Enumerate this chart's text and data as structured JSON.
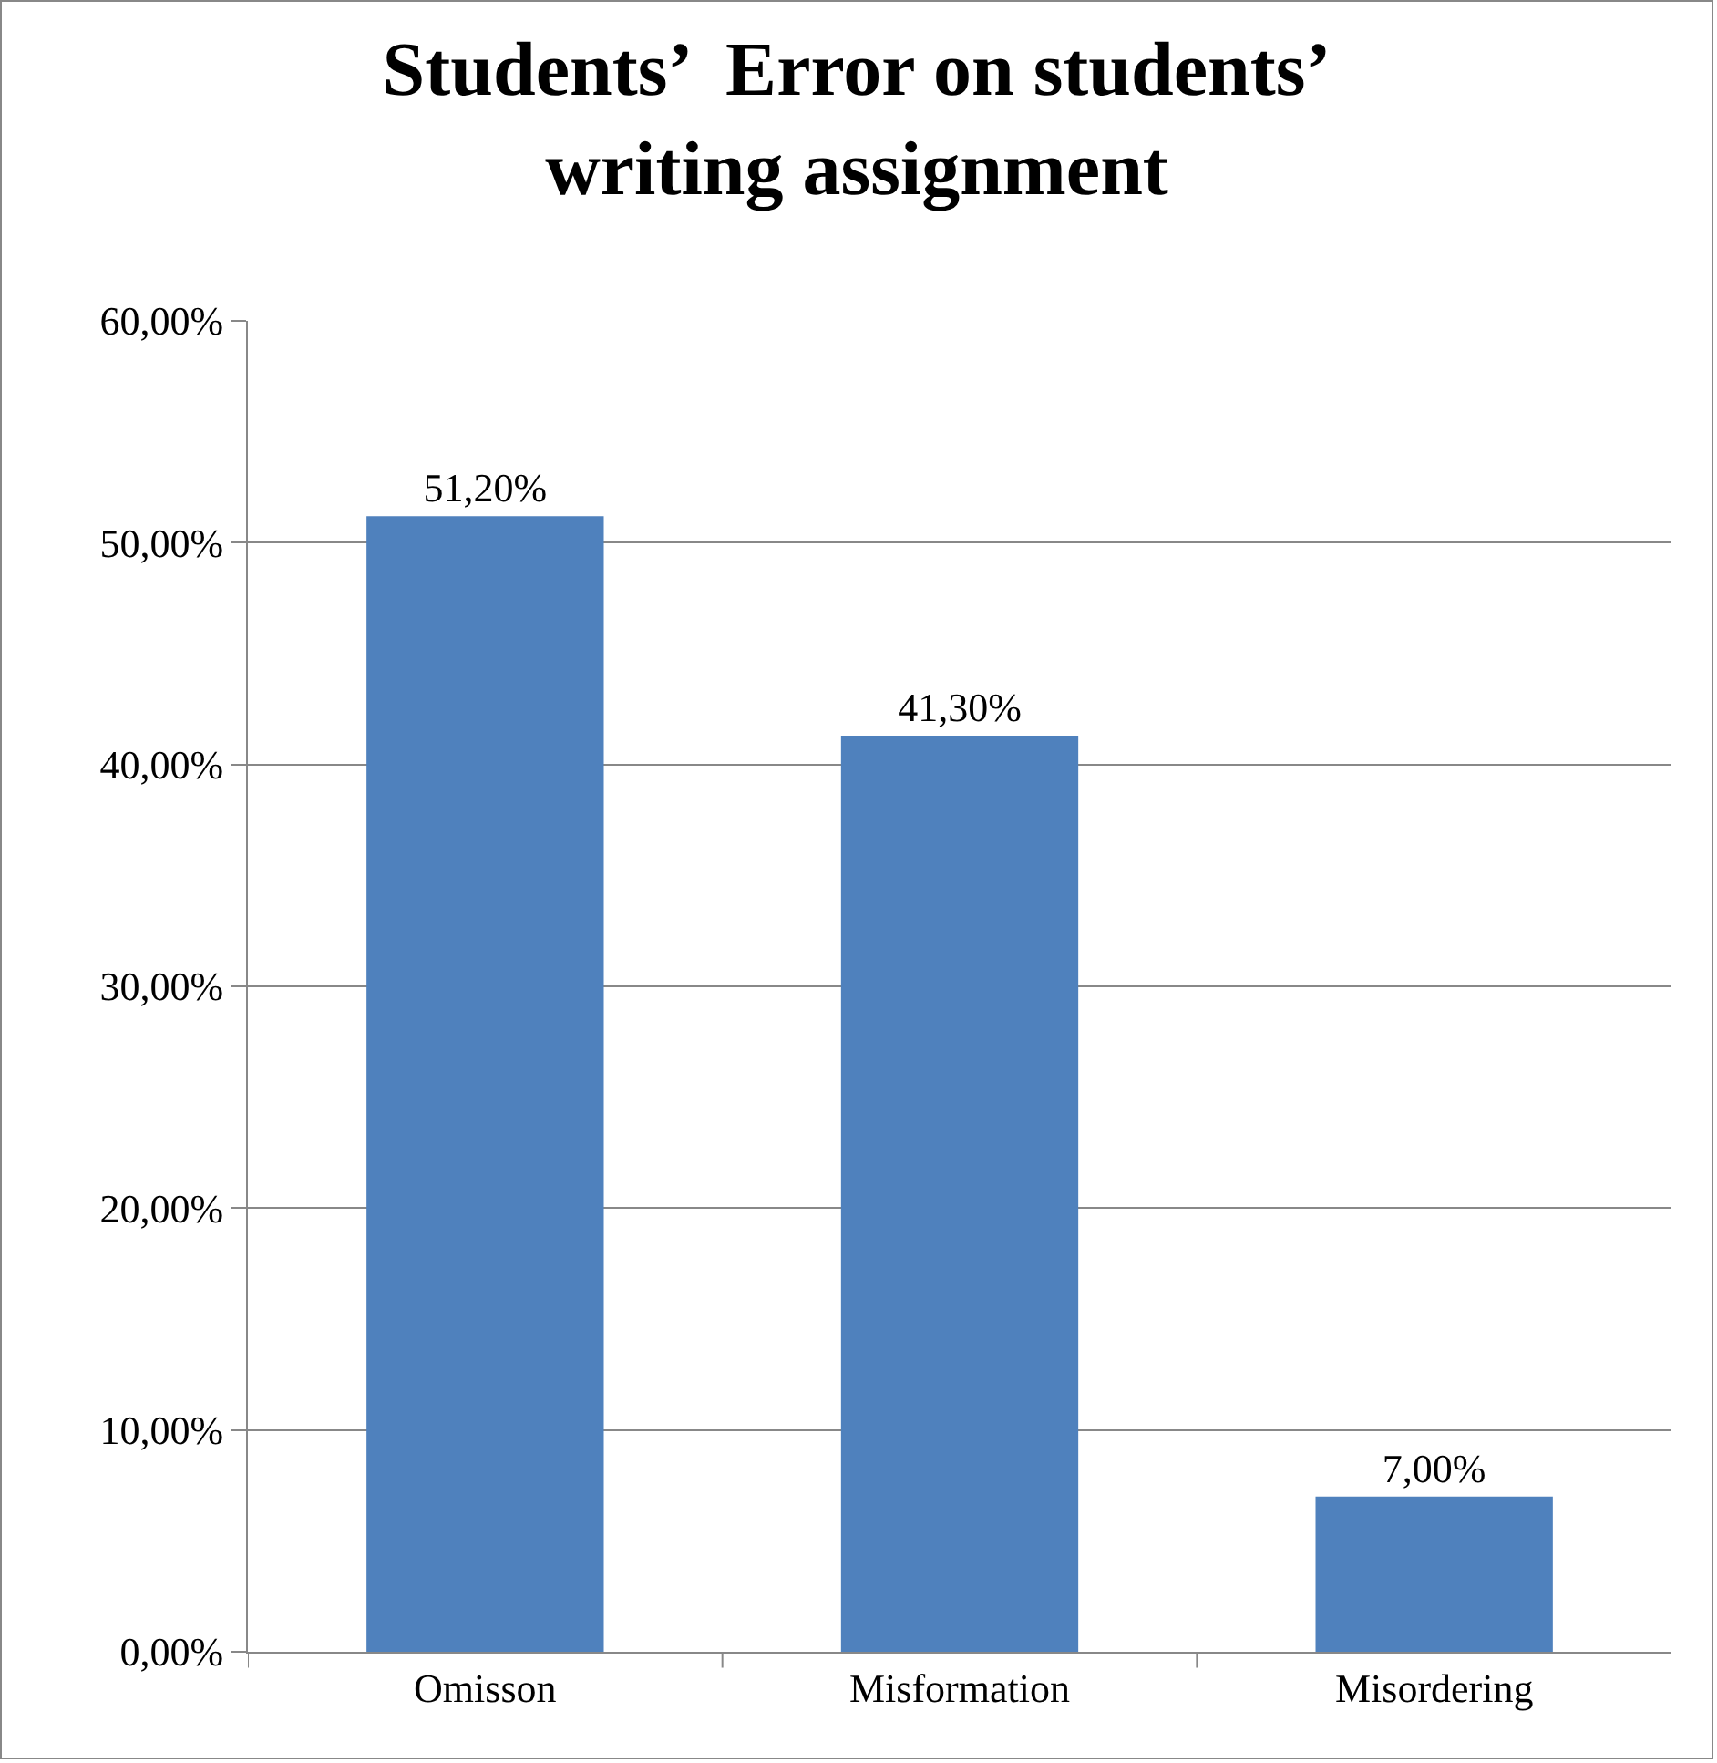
{
  "chart_data": {
    "type": "bar",
    "title": "Students’  Error on students’ writing assignment",
    "categories": [
      "Omisson",
      "Misformation",
      "Misordering"
    ],
    "values": [
      51.2,
      41.3,
      7.0
    ],
    "value_labels": [
      "51,20%",
      "41,30%",
      "7,00%"
    ],
    "color": "#4f81bd",
    "ylim": [
      0,
      60
    ],
    "yticks": [
      {
        "value": 0,
        "label": "0,00%"
      },
      {
        "value": 10,
        "label": "10,00%"
      },
      {
        "value": 20,
        "label": "20,00%"
      },
      {
        "value": 30,
        "label": "30,00%"
      },
      {
        "value": 40,
        "label": "40,00%"
      },
      {
        "value": 50,
        "label": "50,00%"
      },
      {
        "value": 60,
        "label": "60,00%"
      }
    ],
    "grid": "y",
    "legend": false
  }
}
